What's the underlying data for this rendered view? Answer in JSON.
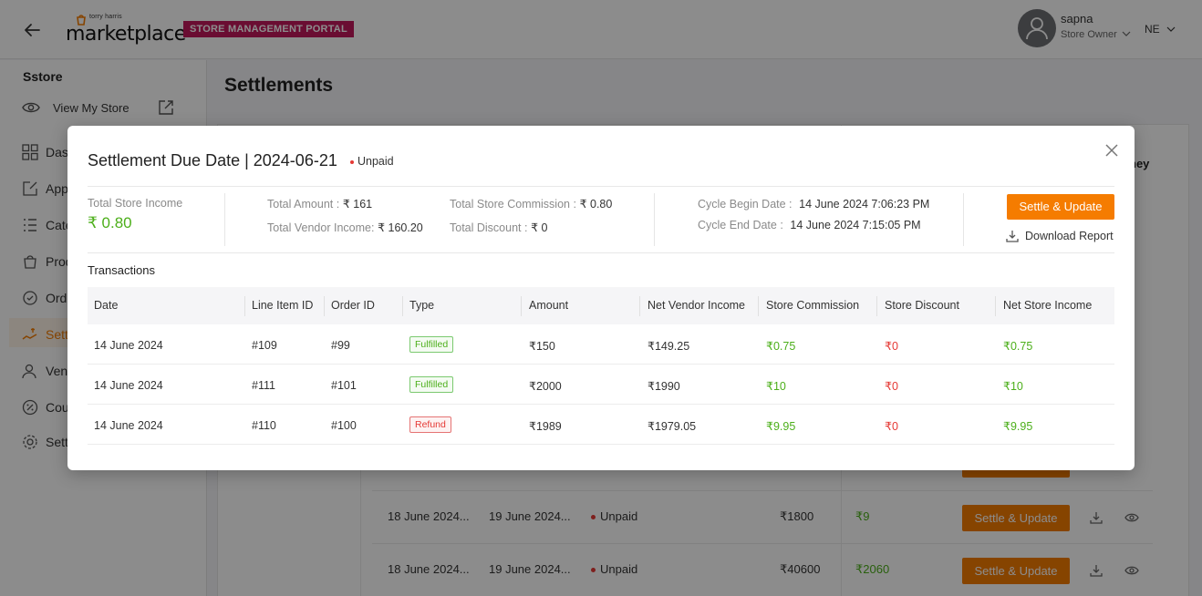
{
  "header": {
    "logo_small": "torry harris",
    "logo_main": "marketplace",
    "portal_badge": "STORE MANAGEMENT PORTAL",
    "user_name": "sapna",
    "user_role": "Store Owner",
    "language": "NE"
  },
  "sidebar": {
    "store_title": "Sstore",
    "view_store": "View My Store",
    "items": [
      {
        "label": "Das",
        "icon": "dashboard-icon"
      },
      {
        "label": "App",
        "icon": "apps-icon"
      },
      {
        "label": "Cate",
        "icon": "categories-icon"
      },
      {
        "label": "Prod",
        "icon": "products-icon"
      },
      {
        "label": "Ord",
        "icon": "orders-icon"
      },
      {
        "label": "Sett",
        "icon": "settlements-icon"
      },
      {
        "label": "Ven",
        "icon": "vendors-icon"
      },
      {
        "label": "Cou",
        "icon": "coupons-icon"
      },
      {
        "label": "Sett",
        "icon": "settings-icon"
      }
    ]
  },
  "page": {
    "title": "Settlements",
    "header_fragment": "ney",
    "rows": [
      {
        "begin": "18 June 2024...",
        "end": "19 June 2024...",
        "status": "Unpaid",
        "amount": "₹1800",
        "commission": "₹9",
        "action": "Settle & Update"
      },
      {
        "begin": "18 June 2024...",
        "end": "19 June 2024...",
        "status": "Unpaid",
        "amount": "₹40600",
        "commission": "₹2060",
        "action": "Settle & Update"
      }
    ]
  },
  "modal": {
    "title": "Settlement Due Date | 2024-06-21",
    "status": "Unpaid",
    "total_store_income_label": "Total Store Income",
    "total_store_income_value": "₹ 0.80",
    "total_amount_label": "Total Amount :",
    "total_amount_value": "₹ 161",
    "total_vendor_income_label": "Total Vendor Income:",
    "total_vendor_income_value": "₹ 160.20",
    "total_store_commission_label": "Total Store Commission :",
    "total_store_commission_value": "₹ 0.80",
    "total_discount_label": "Total Discount :",
    "total_discount_value": "₹ 0",
    "cycle_begin_label": "Cycle Begin Date :",
    "cycle_begin_value": "14 June 2024 7:06:23 PM",
    "cycle_end_label": "Cycle End Date :",
    "cycle_end_value": "14 June 2024 7:15:05 PM",
    "settle_button": "Settle & Update",
    "download_report": "Download Report",
    "transactions_title": "Transactions",
    "columns": [
      "Date",
      "Line Item ID",
      "Order ID",
      "Type",
      "Amount",
      "Net Vendor Income",
      "Store Commission",
      "Store Discount",
      "Net Store Income"
    ],
    "rows": [
      {
        "date": "14 June 2024",
        "line_item": "#109",
        "order": "#99",
        "type": "Fulfilled",
        "amount": "₹150",
        "vendor": "₹149.25",
        "commission": "₹0.75",
        "discount": "₹0",
        "net_store": "₹0.75"
      },
      {
        "date": "14 June 2024",
        "line_item": "#111",
        "order": "#101",
        "type": "Fulfilled",
        "amount": "₹2000",
        "vendor": "₹1990",
        "commission": "₹10",
        "discount": "₹0",
        "net_store": "₹10"
      },
      {
        "date": "14 June 2024",
        "line_item": "#110",
        "order": "#100",
        "type": "Refund",
        "amount": "₹1989",
        "vendor": "₹1979.05",
        "commission": "₹9.95",
        "discount": "₹0",
        "net_store": "₹9.95"
      }
    ]
  },
  "colors": {
    "accent": "#f57c00",
    "badge": "#c2185b",
    "positive": "#4caf1a",
    "negative": "#e53935"
  }
}
